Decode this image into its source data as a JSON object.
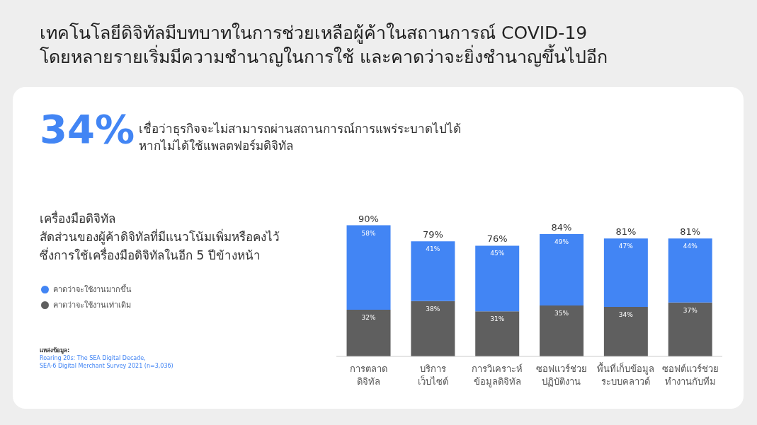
{
  "chart_data": {
    "type": "bar",
    "stacked": true,
    "title": "เทคโนโลยีดิจิทัลมีบทบาทในการช่วยเหลือผู้ค้าในสถานการณ์ COVID-19\nโดยหลายรายเริ่มมีความชำนาญในการใช้ และคาดว่าจะยิ่งชำนาญขึ้นไปอีก",
    "subtitle": "เครื่องมือดิจิทัล\nสัดส่วนของผู้ค้าดิจิทัลที่มีแนวโน้มเพิ่มหรือคงไว้\nซึ่งการใช้เครื่องมือดิจิทัลในอีก 5 ปีข้างหน้า",
    "annotations": [
      "34%",
      "เชื่อว่าธุรกิจจะไม่สามารถผ่านสถานการณ์การแพร่ระบาดไปได้\nหากไม่ได้ใช้แพลตฟอร์มดิจิทัล",
      "แหล่งข้อมูล:\nRoaring 20s: The SEA Digital Decade,\nSEA-6 Digital Merchant Survey 2021 (n=3,036)"
    ],
    "categories": [
      "การตลาด\nดิจิทัล",
      "บริการ\nเว็บไซต์",
      "การวิเคราะห์\nข้อมูลดิจิทัล",
      "ซอฟแวร์ช่วย\nปฏิบัติงาน",
      "พื้นที่เก็บข้อมูล\nระบบคลาวด์",
      "ซอฟต์แวร์ช่วย\nทำงานกับทีม"
    ],
    "series": [
      {
        "name": "คาดว่าจะใช้งานเท่าเดิม",
        "color": "#5f5f5f",
        "values": [
          32,
          38,
          31,
          35,
          34,
          37
        ],
        "value_labels": [
          "32%",
          "38%",
          "31%",
          "35%",
          "34%",
          "37%"
        ]
      },
      {
        "name": "คาดว่าจะใช้งานมากขึ้น",
        "color": "#4285f4",
        "values": [
          58,
          41,
          45,
          49,
          47,
          44
        ],
        "value_labels": [
          "58%",
          "41%",
          "45%",
          "49%",
          "47%",
          "44%"
        ]
      }
    ],
    "totals": [
      "90%",
      "79%",
      "76%",
      "84%",
      "81%",
      "81%"
    ],
    "legend": "left"
  }
}
